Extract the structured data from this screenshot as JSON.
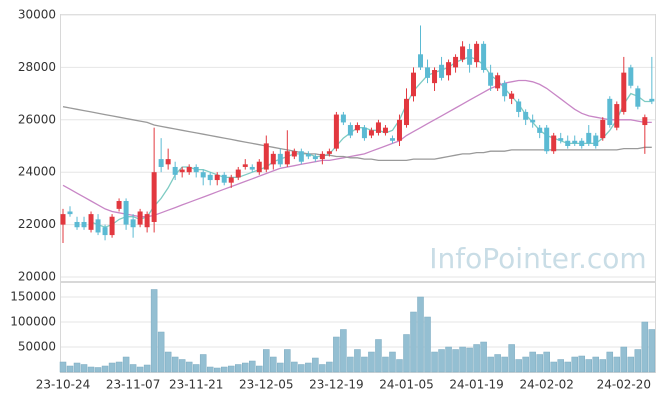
{
  "chart_data": [
    {
      "type": "candlestick",
      "categories": [
        "23-10-24",
        null,
        null,
        null,
        null,
        null,
        null,
        null,
        null,
        null,
        "23-11-07",
        null,
        null,
        null,
        null,
        null,
        null,
        null,
        null,
        "23-11-21",
        null,
        null,
        null,
        null,
        null,
        null,
        null,
        null,
        null,
        "23-12-05",
        null,
        null,
        null,
        null,
        null,
        null,
        null,
        null,
        null,
        "23-12-19",
        null,
        null,
        null,
        null,
        null,
        null,
        null,
        null,
        null,
        "24-01-05",
        null,
        null,
        null,
        null,
        null,
        null,
        null,
        null,
        null,
        "24-01-19",
        null,
        null,
        null,
        null,
        null,
        null,
        null,
        null,
        null,
        "24-02-02",
        null,
        null,
        null,
        null,
        null,
        null,
        null,
        null,
        null,
        null,
        "24-02-20",
        null,
        null,
        null,
        null
      ],
      "ohlc": [
        [
          22000,
          22600,
          21300,
          22400
        ],
        [
          22500,
          22700,
          22300,
          22400
        ],
        [
          22100,
          22300,
          21800,
          21900
        ],
        [
          22100,
          22300,
          21800,
          21900
        ],
        [
          21800,
          22500,
          21700,
          22400
        ],
        [
          22200,
          22400,
          21600,
          21700
        ],
        [
          21900,
          22000,
          21400,
          21600
        ],
        [
          21600,
          22400,
          21500,
          22300
        ],
        [
          22600,
          23000,
          22500,
          22900
        ],
        [
          22900,
          23000,
          21800,
          22000
        ],
        [
          22200,
          22400,
          21500,
          21900
        ],
        [
          22000,
          22600,
          21900,
          22500
        ],
        [
          21900,
          22500,
          21700,
          22400
        ],
        [
          22100,
          25700,
          21700,
          24000
        ],
        [
          24500,
          25300,
          24000,
          24200
        ],
        [
          24300,
          24900,
          24100,
          24500
        ],
        [
          24200,
          24400,
          23700,
          23900
        ],
        [
          24000,
          24200,
          23800,
          24100
        ],
        [
          24000,
          24300,
          23900,
          24200
        ],
        [
          24200,
          24300,
          23800,
          24000
        ],
        [
          24000,
          24100,
          23500,
          23800
        ],
        [
          23900,
          24000,
          23500,
          23700
        ],
        [
          23700,
          24000,
          23500,
          23900
        ],
        [
          23900,
          24000,
          23500,
          23600
        ],
        [
          23600,
          23900,
          23400,
          23800
        ],
        [
          23800,
          24200,
          23700,
          24100
        ],
        [
          24200,
          24500,
          24100,
          24300
        ],
        [
          24200,
          24300,
          24000,
          24100
        ],
        [
          24000,
          24500,
          23900,
          24400
        ],
        [
          24100,
          25400,
          24000,
          25100
        ],
        [
          24300,
          24800,
          24100,
          24700
        ],
        [
          24700,
          24900,
          24200,
          24300
        ],
        [
          24300,
          25600,
          24200,
          24800
        ],
        [
          24600,
          24900,
          24500,
          24800
        ],
        [
          24800,
          24900,
          24300,
          24400
        ],
        [
          24700,
          24800,
          24500,
          24600
        ],
        [
          24600,
          24700,
          24400,
          24500
        ],
        [
          24500,
          24800,
          24300,
          24700
        ],
        [
          24700,
          24900,
          24600,
          24800
        ],
        [
          24900,
          26300,
          24800,
          26200
        ],
        [
          26200,
          26300,
          25800,
          25900
        ],
        [
          25800,
          25900,
          25300,
          25400
        ],
        [
          25600,
          25900,
          25500,
          25800
        ],
        [
          25700,
          25800,
          25200,
          25300
        ],
        [
          25400,
          25700,
          25300,
          25600
        ],
        [
          25500,
          26000,
          25400,
          25900
        ],
        [
          25500,
          25800,
          25400,
          25700
        ],
        [
          25300,
          25400,
          25100,
          25200
        ],
        [
          25200,
          26200,
          25000,
          26000
        ],
        [
          25800,
          27200,
          25700,
          26800
        ],
        [
          26900,
          28000,
          26700,
          27800
        ],
        [
          28500,
          29600,
          27900,
          28000
        ],
        [
          28000,
          28300,
          27400,
          27600
        ],
        [
          27400,
          28000,
          27100,
          27900
        ],
        [
          28100,
          28400,
          27500,
          27600
        ],
        [
          27700,
          28300,
          27500,
          28200
        ],
        [
          28000,
          28500,
          27800,
          28400
        ],
        [
          28300,
          29000,
          28200,
          28800
        ],
        [
          28700,
          28900,
          27800,
          28100
        ],
        [
          28200,
          29000,
          28000,
          28900
        ],
        [
          28900,
          29000,
          27800,
          27900
        ],
        [
          27800,
          28100,
          27100,
          27300
        ],
        [
          27200,
          27800,
          27100,
          27700
        ],
        [
          27400,
          27500,
          26700,
          26900
        ],
        [
          26800,
          27100,
          26600,
          27000
        ],
        [
          26700,
          26800,
          26100,
          26300
        ],
        [
          26300,
          26400,
          25800,
          26000
        ],
        [
          26000,
          26200,
          25700,
          25900
        ],
        [
          25700,
          25800,
          25300,
          25500
        ],
        [
          25700,
          25800,
          24700,
          24800
        ],
        [
          24800,
          25500,
          24700,
          25400
        ],
        [
          25300,
          25500,
          25100,
          25200
        ],
        [
          25200,
          25400,
          24900,
          25000
        ],
        [
          25200,
          25400,
          25000,
          25100
        ],
        [
          25200,
          25300,
          24900,
          25000
        ],
        [
          25500,
          25800,
          25000,
          25100
        ],
        [
          25400,
          25500,
          24900,
          25000
        ],
        [
          25300,
          26100,
          25200,
          26000
        ],
        [
          26800,
          26900,
          25700,
          25800
        ],
        [
          25700,
          26700,
          25600,
          26600
        ],
        [
          26300,
          28400,
          26200,
          27800
        ],
        [
          28000,
          28100,
          27200,
          27300
        ],
        [
          27200,
          27300,
          26400,
          26500
        ],
        [
          25800,
          26200,
          24700,
          26100
        ],
        [
          26800,
          28400,
          26600,
          26700
        ]
      ],
      "up_color": "#e2383f",
      "down_color": "#5bbad3",
      "lines": [
        {
          "color": "#7ecbc3",
          "values": [
            null,
            null,
            null,
            null,
            22100,
            22000,
            21900,
            22000,
            22200,
            22300,
            22300,
            22200,
            22300,
            22700,
            23000,
            23400,
            23900,
            24200,
            24200,
            24100,
            24100,
            24000,
            23900,
            23800,
            23800,
            23800,
            23900,
            24000,
            24100,
            24200,
            24400,
            24500,
            24600,
            24700,
            24700,
            24700,
            24600,
            24600,
            24700,
            25000,
            25300,
            25500,
            25700,
            25700,
            25600,
            25600,
            25500,
            25600,
            26000,
            26600,
            27100,
            27400,
            27700,
            27800,
            27900,
            28000,
            28200,
            28300,
            28400,
            28300,
            28100,
            27700,
            27500,
            27200,
            26900,
            26600,
            26200,
            25900,
            25600,
            25400,
            25300,
            25200,
            25100,
            25100,
            25100,
            25100,
            25100,
            25300,
            25600,
            26000,
            26600,
            27000,
            26900,
            26700,
            26700
          ]
        },
        {
          "color": "#c886c6",
          "values": [
            23500,
            23350,
            23200,
            23050,
            22900,
            22750,
            22600,
            22500,
            22450,
            22400,
            22350,
            22300,
            22300,
            22350,
            22450,
            22550,
            22650,
            22750,
            22850,
            22950,
            23050,
            23150,
            23250,
            23350,
            23450,
            23550,
            23650,
            23750,
            23850,
            23950,
            24050,
            24150,
            24200,
            24250,
            24300,
            24350,
            24400,
            24450,
            24450,
            24500,
            24550,
            24600,
            24650,
            24700,
            24800,
            24900,
            25000,
            25100,
            25200,
            25400,
            25550,
            25700,
            25850,
            26000,
            26150,
            26300,
            26450,
            26600,
            26750,
            26900,
            27050,
            27200,
            27300,
            27400,
            27450,
            27500,
            27500,
            27450,
            27350,
            27200,
            27000,
            26800,
            26600,
            26400,
            26250,
            26150,
            26100,
            26050,
            26000,
            26000,
            26000,
            26000,
            25950,
            25900,
            25900
          ]
        },
        {
          "color": "#9a9a9a",
          "values": [
            26500,
            26450,
            26400,
            26350,
            26300,
            26250,
            26200,
            26150,
            26100,
            26050,
            26000,
            25950,
            25900,
            25800,
            25750,
            25700,
            25650,
            25600,
            25550,
            25500,
            25450,
            25400,
            25350,
            25300,
            25250,
            25200,
            25150,
            25100,
            25050,
            25000,
            24950,
            24900,
            24850,
            24800,
            24750,
            24700,
            24700,
            24650,
            24650,
            24600,
            24600,
            24550,
            24550,
            24500,
            24500,
            24450,
            24450,
            24450,
            24450,
            24450,
            24500,
            24500,
            24500,
            24500,
            24550,
            24600,
            24650,
            24700,
            24700,
            24750,
            24750,
            24800,
            24800,
            24800,
            24850,
            24850,
            24850,
            24850,
            24850,
            24850,
            24850,
            24850,
            24850,
            24850,
            24850,
            24850,
            24850,
            24850,
            24850,
            24850,
            24900,
            24900,
            24900,
            24950,
            24950
          ]
        }
      ],
      "ylim": [
        20000,
        30000
      ],
      "yticks": [
        20000,
        22000,
        24000,
        26000,
        28000,
        30000
      ],
      "grid": true,
      "watermark": "InfoPointer.com"
    },
    {
      "type": "bar",
      "values": [
        20000,
        12000,
        18000,
        15000,
        10000,
        9000,
        12000,
        18000,
        20000,
        30000,
        15000,
        10000,
        14000,
        165000,
        80000,
        40000,
        30000,
        25000,
        20000,
        15000,
        35000,
        10000,
        8000,
        10000,
        12000,
        15000,
        18000,
        22000,
        12000,
        45000,
        30000,
        18000,
        45000,
        20000,
        15000,
        18000,
        28000,
        15000,
        20000,
        70000,
        85000,
        30000,
        45000,
        30000,
        40000,
        65000,
        30000,
        40000,
        25000,
        75000,
        120000,
        150000,
        110000,
        40000,
        45000,
        50000,
        45000,
        50000,
        48000,
        55000,
        60000,
        30000,
        35000,
        30000,
        55000,
        25000,
        30000,
        40000,
        35000,
        40000,
        20000,
        25000,
        20000,
        30000,
        32000,
        25000,
        30000,
        25000,
        40000,
        30000,
        50000,
        30000,
        45000,
        100000,
        85000
      ],
      "color": "#94bfd2",
      "ylim": [
        0,
        178000
      ],
      "yticks": [
        50000,
        100000,
        150000
      ],
      "grid": true
    }
  ]
}
